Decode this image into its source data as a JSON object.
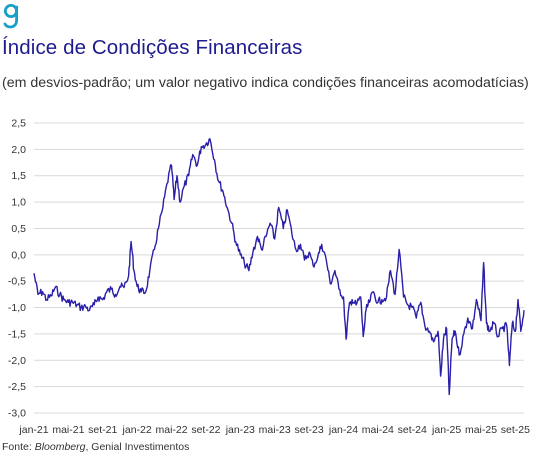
{
  "header": {
    "title": "Índice de Condições Financeiras",
    "subtitle": "(em desvios-padrão; um valor negativo indica condições financeiras acomodatícias)"
  },
  "footer": {
    "source_italic": "Bloomberg",
    "source_rest": ", Genial Investimentos",
    "source_prefix": "Fonte: "
  },
  "colors": {
    "line": "#2a1fa8",
    "title": "#1f1b8f",
    "logo": "#14a0c8"
  },
  "icons": {
    "logo": "genial-g-logo-icon"
  },
  "chart_data": {
    "type": "line",
    "title": "Índice de Condições Financeiras",
    "ylabel": "",
    "xlabel": "",
    "ylim": [
      -3.0,
      2.5
    ],
    "grid": true,
    "y_ticks": [
      "2,5",
      "2,0",
      "1,5",
      "1,0",
      "0,5",
      "0,0",
      "-0,5",
      "-1,0",
      "-1,5",
      "-2,0",
      "-2,5",
      "-3,0"
    ],
    "x_ticks": [
      "jan-21",
      "mai-21",
      "set-21",
      "jan-22",
      "mai-22",
      "set-22",
      "jan-23",
      "mai-23",
      "set-23",
      "jan-24",
      "mai-24",
      "set-24",
      "jan-25",
      "mai-25",
      "set-25"
    ],
    "x_range": [
      "2021-01",
      "2025-10"
    ],
    "series": [
      {
        "points": [
          [
            "2021-01",
            -0.35
          ],
          [
            "2021-01-15",
            -0.75
          ],
          [
            "2021-02",
            -0.7
          ],
          [
            "2021-02-15",
            -0.85
          ],
          [
            "2021-03",
            -0.78
          ],
          [
            "2021-03-15",
            -0.62
          ],
          [
            "2021-04",
            -0.75
          ],
          [
            "2021-04-15",
            -0.85
          ],
          [
            "2021-05",
            -0.9
          ],
          [
            "2021-05-15",
            -0.9
          ],
          [
            "2021-06",
            -0.95
          ],
          [
            "2021-06-15",
            -1.0
          ],
          [
            "2021-07",
            -0.98
          ],
          [
            "2021-07-15",
            -1.05
          ],
          [
            "2021-08",
            -0.95
          ],
          [
            "2021-08-15",
            -0.8
          ],
          [
            "2021-09",
            -0.85
          ],
          [
            "2021-09-15",
            -0.7
          ],
          [
            "2021-10",
            -0.65
          ],
          [
            "2021-10-15",
            -0.75
          ],
          [
            "2021-11",
            -0.6
          ],
          [
            "2021-11-15",
            -0.62
          ],
          [
            "2021-12",
            -0.4
          ],
          [
            "2021-12-10",
            0.25
          ],
          [
            "2021-12-20",
            -0.3
          ],
          [
            "2022-01",
            -0.6
          ],
          [
            "2022-01-15",
            -0.7
          ],
          [
            "2022-02",
            -0.7
          ],
          [
            "2022-02-15",
            -0.3
          ],
          [
            "2022-03",
            0.1
          ],
          [
            "2022-03-15",
            0.5
          ],
          [
            "2022-04",
            0.9
          ],
          [
            "2022-04-15",
            1.35
          ],
          [
            "2022-05",
            1.7
          ],
          [
            "2022-05-10",
            1.05
          ],
          [
            "2022-05-20",
            1.5
          ],
          [
            "2022-06",
            1.0
          ],
          [
            "2022-06-15",
            1.3
          ],
          [
            "2022-07",
            1.5
          ],
          [
            "2022-07-15",
            1.9
          ],
          [
            "2022-08",
            1.7
          ],
          [
            "2022-08-15",
            2.05
          ],
          [
            "2022-09",
            2.1
          ],
          [
            "2022-09-15",
            2.2
          ],
          [
            "2022-10",
            1.8
          ],
          [
            "2022-10-15",
            1.4
          ],
          [
            "2022-11",
            1.2
          ],
          [
            "2022-11-15",
            0.9
          ],
          [
            "2022-12",
            0.6
          ],
          [
            "2022-12-15",
            0.25
          ],
          [
            "2023-01",
            0.0
          ],
          [
            "2023-01-15",
            -0.15
          ],
          [
            "2023-02",
            -0.3
          ],
          [
            "2023-02-15",
            0.05
          ],
          [
            "2023-03",
            0.35
          ],
          [
            "2023-03-15",
            0.1
          ],
          [
            "2023-04",
            0.35
          ],
          [
            "2023-04-15",
            0.6
          ],
          [
            "2023-05",
            0.3
          ],
          [
            "2023-05-15",
            0.9
          ],
          [
            "2023-06",
            0.5
          ],
          [
            "2023-06-15",
            0.85
          ],
          [
            "2023-07",
            0.4
          ],
          [
            "2023-07-15",
            0.1
          ],
          [
            "2023-08",
            0.2
          ],
          [
            "2023-08-15",
            -0.1
          ],
          [
            "2023-09",
            0.05
          ],
          [
            "2023-09-15",
            -0.2
          ],
          [
            "2023-10",
            -0.05
          ],
          [
            "2023-10-15",
            0.2
          ],
          [
            "2023-11",
            -0.1
          ],
          [
            "2023-11-15",
            -0.55
          ],
          [
            "2023-12",
            -0.3
          ],
          [
            "2023-12-15",
            -0.65
          ],
          [
            "2024-01",
            -0.8
          ],
          [
            "2024-01-10",
            -1.6
          ],
          [
            "2024-01-20",
            -1.0
          ],
          [
            "2024-02",
            -0.85
          ],
          [
            "2024-02-15",
            -0.95
          ],
          [
            "2024-03",
            -0.8
          ],
          [
            "2024-03-10",
            -1.55
          ],
          [
            "2024-03-20",
            -1.05
          ],
          [
            "2024-04",
            -0.9
          ],
          [
            "2024-04-15",
            -0.7
          ],
          [
            "2024-05",
            -0.9
          ],
          [
            "2024-05-15",
            -0.85
          ],
          [
            "2024-06",
            -0.8
          ],
          [
            "2024-06-15",
            -0.3
          ],
          [
            "2024-07",
            -0.75
          ],
          [
            "2024-07-15",
            0.1
          ],
          [
            "2024-08",
            -0.8
          ],
          [
            "2024-08-15",
            -0.95
          ],
          [
            "2024-09",
            -1.0
          ],
          [
            "2024-09-15",
            -1.2
          ],
          [
            "2024-10",
            -0.9
          ],
          [
            "2024-10-15",
            -1.35
          ],
          [
            "2024-11",
            -1.45
          ],
          [
            "2024-11-15",
            -1.65
          ],
          [
            "2024-12",
            -1.45
          ],
          [
            "2024-12-10",
            -2.3
          ],
          [
            "2024-12-20",
            -1.6
          ],
          [
            "2025-01",
            -1.4
          ],
          [
            "2025-01-10",
            -2.65
          ],
          [
            "2025-01-20",
            -1.6
          ],
          [
            "2025-02",
            -1.45
          ],
          [
            "2025-02-15",
            -1.9
          ],
          [
            "2025-03",
            -1.5
          ],
          [
            "2025-03-15",
            -1.2
          ],
          [
            "2025-04",
            -1.4
          ],
          [
            "2025-04-15",
            -0.85
          ],
          [
            "2025-05",
            -1.25
          ],
          [
            "2025-05-10",
            -0.15
          ],
          [
            "2025-05-20",
            -1.3
          ],
          [
            "2025-06",
            -1.45
          ],
          [
            "2025-06-15",
            -1.3
          ],
          [
            "2025-07",
            -1.55
          ],
          [
            "2025-07-15",
            -1.4
          ],
          [
            "2025-08",
            -1.35
          ],
          [
            "2025-08-10",
            -2.1
          ],
          [
            "2025-08-20",
            -1.3
          ],
          [
            "2025-09",
            -1.45
          ],
          [
            "2025-09-10",
            -0.85
          ],
          [
            "2025-09-20",
            -1.45
          ],
          [
            "2025-10",
            -1.05
          ]
        ]
      }
    ]
  }
}
